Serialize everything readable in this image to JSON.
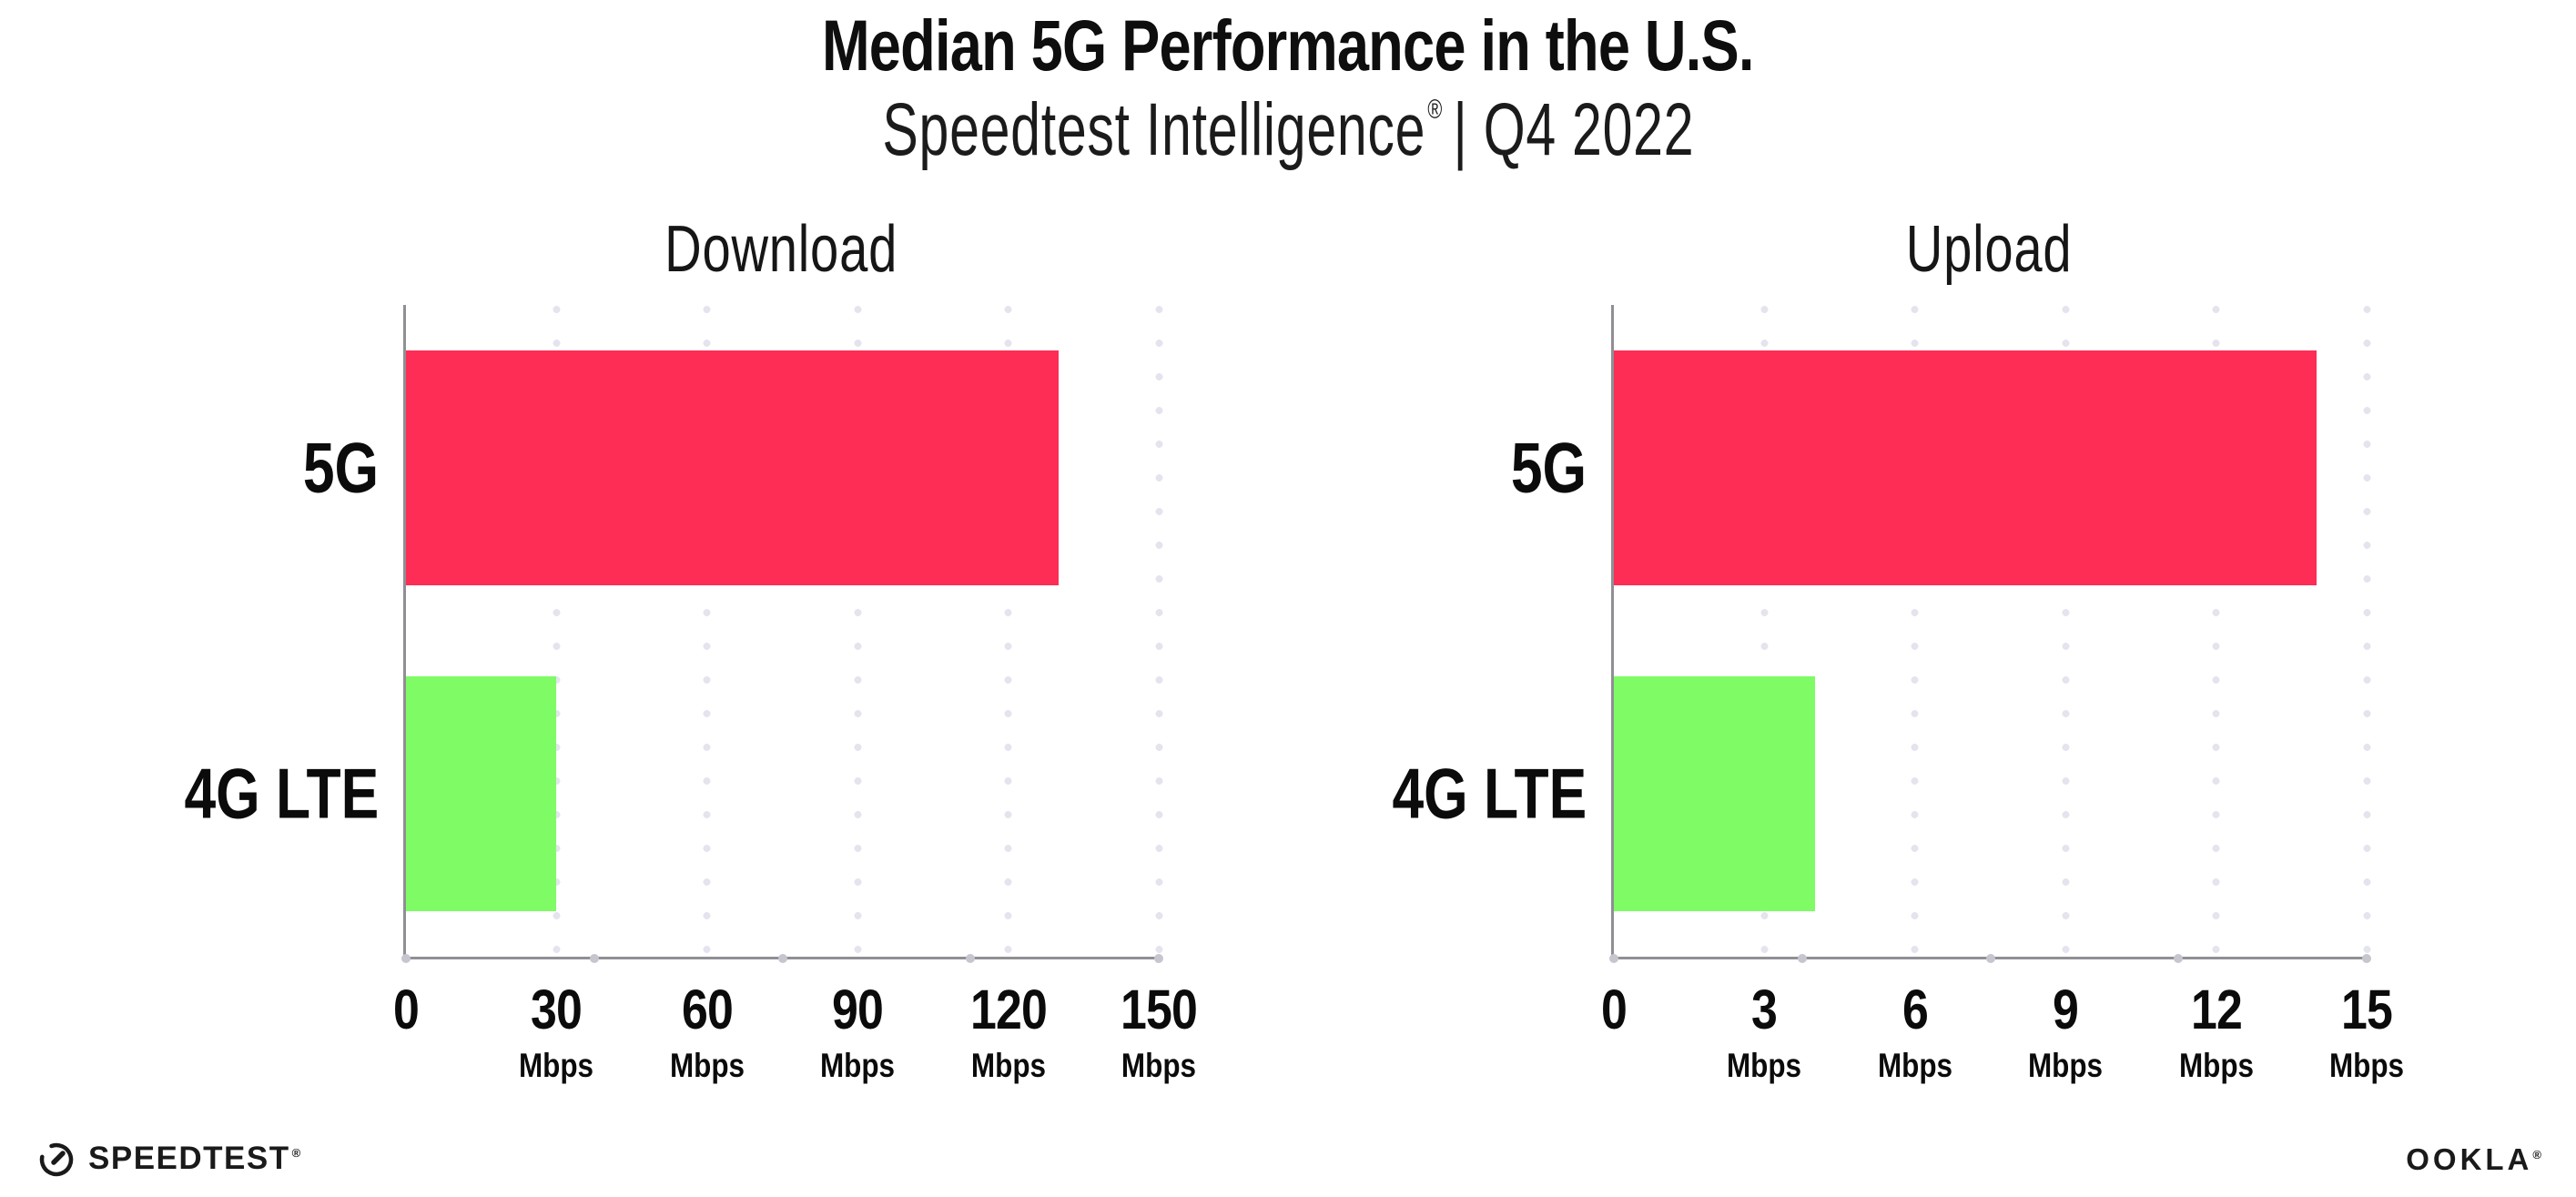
{
  "header": {
    "title": "Median 5G Performance in the U.S.",
    "subtitle_brand": "Speedtest Intelligence",
    "subtitle_reg": "®",
    "subtitle_period": "| Q4 2022"
  },
  "chart_data": [
    {
      "type": "bar",
      "orientation": "horizontal",
      "title": "Download",
      "categories": [
        "5G",
        "4G LTE"
      ],
      "values": [
        130,
        30
      ],
      "unit": "Mbps",
      "xlim": [
        0,
        150
      ],
      "xticks": [
        0,
        30,
        60,
        90,
        120,
        150
      ],
      "bar_colors": [
        "#fd2d55",
        "#7ffb66"
      ],
      "grid": "dotted-vertical",
      "legend": "none"
    },
    {
      "type": "bar",
      "orientation": "horizontal",
      "title": "Upload",
      "categories": [
        "5G",
        "4G LTE"
      ],
      "values": [
        14,
        4
      ],
      "unit": "Mbps",
      "xlim": [
        0,
        15
      ],
      "xticks": [
        0,
        3,
        6,
        9,
        12,
        15
      ],
      "bar_colors": [
        "#fd2d55",
        "#7ffb66"
      ],
      "grid": "dotted-vertical",
      "legend": "none"
    }
  ],
  "colors": {
    "bar_5g": "#fd2d55",
    "bar_4g_lte": "#7ffb66",
    "gridline": "#e4e4ee",
    "axis": "#8f8f94",
    "background": "#ffffff"
  },
  "footer": {
    "speedtest_label": "SPEEDTEST",
    "speedtest_reg": "®",
    "speedtest_icon": "speedtest-gauge-icon",
    "ookla_label": "OOKLA",
    "ookla_reg": "®"
  }
}
